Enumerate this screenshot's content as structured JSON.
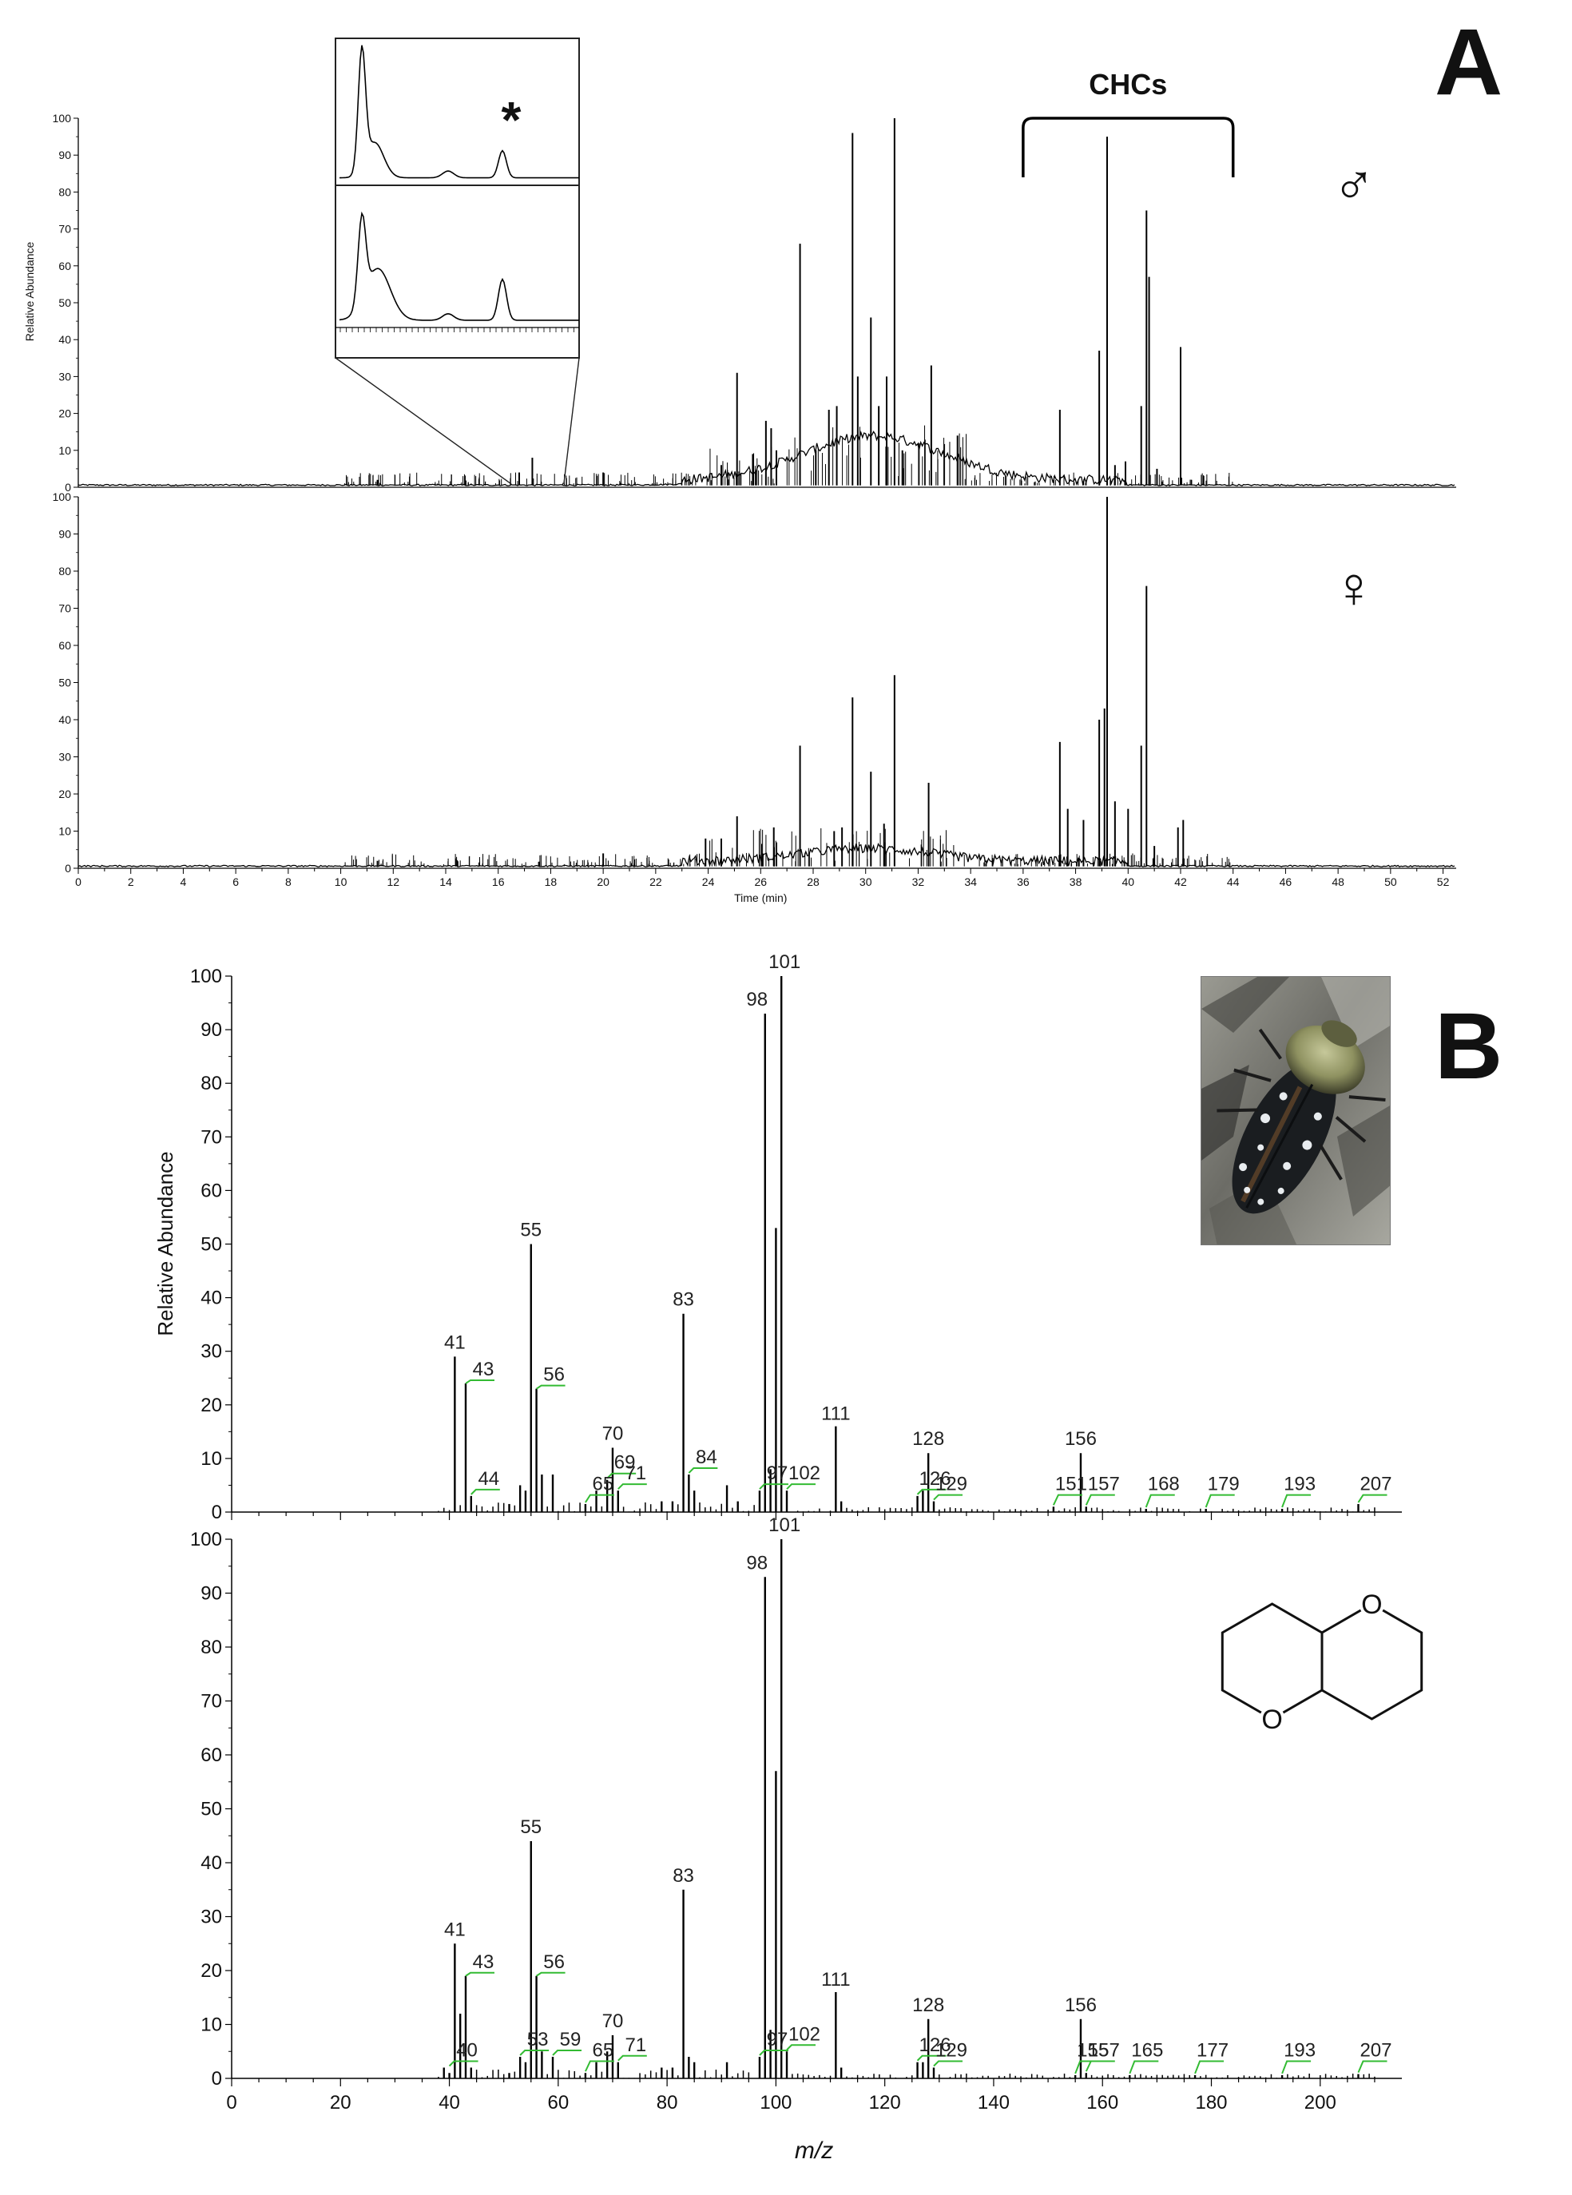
{
  "panels": {
    "a": {
      "letter": "A"
    },
    "b": {
      "letter": "B"
    }
  },
  "chart_data": [
    {
      "type": "line",
      "id": "chromatogram-male",
      "symbol": "♂",
      "ylabel": "Relative Abundance",
      "yticks": [
        0,
        10,
        20,
        30,
        40,
        50,
        60,
        70,
        80,
        90,
        100
      ],
      "ylim": [
        0,
        100
      ],
      "xlim": [
        0,
        52.5
      ],
      "bracket": {
        "label": "CHCs",
        "x_range": [
          36,
          44
        ]
      },
      "inset": {
        "marker": "*",
        "x_range": [
          16.5,
          18.5
        ]
      },
      "peaks": [
        [
          11.4,
          2
        ],
        [
          16.8,
          4
        ],
        [
          17.3,
          8
        ],
        [
          20,
          4
        ],
        [
          24.5,
          6
        ],
        [
          25.1,
          31
        ],
        [
          25.7,
          9
        ],
        [
          26.2,
          18
        ],
        [
          26.4,
          16
        ],
        [
          26.6,
          10
        ],
        [
          27.5,
          66
        ],
        [
          28.1,
          10
        ],
        [
          28.6,
          21
        ],
        [
          28.9,
          22
        ],
        [
          29.5,
          96
        ],
        [
          29.7,
          30
        ],
        [
          30.2,
          46
        ],
        [
          30.5,
          22
        ],
        [
          30.8,
          30
        ],
        [
          31.1,
          100
        ],
        [
          31.4,
          10
        ],
        [
          32.5,
          33
        ],
        [
          33.5,
          14
        ],
        [
          37.4,
          21
        ],
        [
          38.9,
          37
        ],
        [
          39.2,
          95
        ],
        [
          39.5,
          6
        ],
        [
          39.9,
          7
        ],
        [
          40.5,
          22
        ],
        [
          40.7,
          75
        ],
        [
          40.8,
          57
        ],
        [
          41.1,
          5
        ],
        [
          42.0,
          38
        ]
      ]
    },
    {
      "type": "line",
      "id": "chromatogram-female",
      "symbol": "♀",
      "xlabel": "Time (min)",
      "xticks": [
        0,
        2,
        4,
        6,
        8,
        10,
        12,
        14,
        16,
        18,
        20,
        22,
        24,
        26,
        28,
        30,
        32,
        34,
        36,
        38,
        40,
        42,
        44,
        46,
        48,
        50,
        52
      ],
      "yticks": [
        0,
        10,
        20,
        30,
        40,
        50,
        60,
        70,
        80,
        90,
        100
      ],
      "ylim": [
        0,
        100
      ],
      "xlim": [
        0,
        52.5
      ],
      "peaks": [
        [
          11.4,
          2
        ],
        [
          20,
          4
        ],
        [
          23.9,
          8
        ],
        [
          24.5,
          8
        ],
        [
          25.1,
          14
        ],
        [
          26.5,
          11
        ],
        [
          27.5,
          33
        ],
        [
          28.8,
          10
        ],
        [
          29.1,
          11
        ],
        [
          29.5,
          46
        ],
        [
          30.2,
          26
        ],
        [
          30.7,
          12
        ],
        [
          31.1,
          52
        ],
        [
          32.4,
          23
        ],
        [
          37.4,
          34
        ],
        [
          37.7,
          16
        ],
        [
          38.3,
          13
        ],
        [
          38.9,
          40
        ],
        [
          39.1,
          43
        ],
        [
          39.2,
          100
        ],
        [
          39.5,
          18
        ],
        [
          40.0,
          16
        ],
        [
          40.5,
          33
        ],
        [
          40.7,
          76
        ],
        [
          41.0,
          6
        ],
        [
          41.9,
          11
        ],
        [
          42.1,
          13
        ]
      ]
    },
    {
      "type": "bar",
      "id": "mass-spectrum-sample",
      "ylabel": "Relative Abundance",
      "yticks": [
        0,
        10,
        20,
        30,
        40,
        50,
        60,
        70,
        80,
        90,
        100
      ],
      "ylim": [
        0,
        100
      ],
      "xlim": [
        0,
        215
      ],
      "peaks": [
        [
          41,
          29
        ],
        [
          43,
          24
        ],
        [
          44,
          3
        ],
        [
          51,
          1.5
        ],
        [
          53,
          5
        ],
        [
          54,
          4
        ],
        [
          55,
          50
        ],
        [
          56,
          23
        ],
        [
          57,
          7
        ],
        [
          59,
          7
        ],
        [
          65,
          1.5
        ],
        [
          67,
          4
        ],
        [
          69,
          6
        ],
        [
          70,
          12
        ],
        [
          71,
          4
        ],
        [
          79,
          2
        ],
        [
          81,
          2
        ],
        [
          83,
          37
        ],
        [
          84,
          7
        ],
        [
          85,
          4
        ],
        [
          91,
          5
        ],
        [
          93,
          2
        ],
        [
          97,
          4
        ],
        [
          98,
          93
        ],
        [
          99,
          8
        ],
        [
          100,
          53
        ],
        [
          101,
          100
        ],
        [
          102,
          4
        ],
        [
          111,
          16
        ],
        [
          112,
          2
        ],
        [
          126,
          3
        ],
        [
          127,
          4
        ],
        [
          128,
          11
        ],
        [
          129,
          2
        ],
        [
          151,
          1
        ],
        [
          156,
          11
        ],
        [
          157,
          1
        ],
        [
          168,
          0.6
        ],
        [
          179,
          0.6
        ],
        [
          193,
          0.6
        ],
        [
          207,
          1.5
        ]
      ],
      "labels": [
        {
          "text": "41",
          "x": 41,
          "y": 29
        },
        {
          "text": "43",
          "x": 43,
          "y": 24
        },
        {
          "text": "44",
          "x": 44,
          "y": 3
        },
        {
          "text": "55",
          "x": 55,
          "y": 50
        },
        {
          "text": "56",
          "x": 56,
          "y": 23
        },
        {
          "text": "69",
          "x": 69,
          "y": 6
        },
        {
          "text": "65",
          "x": 65,
          "y": 1.5
        },
        {
          "text": "70",
          "x": 70,
          "y": 12
        },
        {
          "text": "71",
          "x": 71,
          "y": 4
        },
        {
          "text": "83",
          "x": 83,
          "y": 37
        },
        {
          "text": "84",
          "x": 84,
          "y": 7
        },
        {
          "text": "97",
          "x": 97,
          "y": 4
        },
        {
          "text": "98",
          "x": 98,
          "y": 93
        },
        {
          "text": "101",
          "x": 101,
          "y": 100
        },
        {
          "text": "102",
          "x": 102,
          "y": 4
        },
        {
          "text": "111",
          "x": 111,
          "y": 16
        },
        {
          "text": "126",
          "x": 126,
          "y": 3
        },
        {
          "text": "128",
          "x": 128,
          "y": 11
        },
        {
          "text": "129",
          "x": 129,
          "y": 2
        },
        {
          "text": "151",
          "x": 151,
          "y": 1
        },
        {
          "text": "156",
          "x": 156,
          "y": 11
        },
        {
          "text": "157",
          "x": 157,
          "y": 1
        },
        {
          "text": "168",
          "x": 168,
          "y": 0.6
        },
        {
          "text": "179",
          "x": 179,
          "y": 0.6
        },
        {
          "text": "193",
          "x": 193,
          "y": 0.6
        },
        {
          "text": "207",
          "x": 207,
          "y": 1.5
        }
      ]
    },
    {
      "type": "bar",
      "id": "mass-spectrum-reference",
      "xlabel": "m/z",
      "xticks": [
        0,
        20,
        40,
        60,
        80,
        100,
        120,
        140,
        160,
        180,
        200
      ],
      "yticks": [
        0,
        10,
        20,
        30,
        40,
        50,
        60,
        70,
        80,
        90,
        100
      ],
      "ylim": [
        0,
        100
      ],
      "xlim": [
        0,
        215
      ],
      "peaks": [
        [
          39,
          2
        ],
        [
          40,
          1
        ],
        [
          41,
          25
        ],
        [
          42,
          12
        ],
        [
          43,
          19
        ],
        [
          44,
          2
        ],
        [
          51,
          1
        ],
        [
          53,
          4
        ],
        [
          54,
          3
        ],
        [
          55,
          44
        ],
        [
          56,
          19
        ],
        [
          57,
          5
        ],
        [
          59,
          4
        ],
        [
          65,
          1
        ],
        [
          67,
          3
        ],
        [
          69,
          5
        ],
        [
          70,
          8
        ],
        [
          71,
          3
        ],
        [
          79,
          2
        ],
        [
          81,
          2
        ],
        [
          83,
          35
        ],
        [
          84,
          4
        ],
        [
          85,
          3
        ],
        [
          91,
          3
        ],
        [
          97,
          4
        ],
        [
          98,
          93
        ],
        [
          99,
          9
        ],
        [
          100,
          57
        ],
        [
          101,
          100
        ],
        [
          102,
          5
        ],
        [
          111,
          16
        ],
        [
          112,
          2
        ],
        [
          126,
          3
        ],
        [
          127,
          3
        ],
        [
          128,
          11
        ],
        [
          129,
          2
        ],
        [
          155,
          0.6
        ],
        [
          156,
          11
        ],
        [
          157,
          1
        ],
        [
          165,
          0.6
        ],
        [
          177,
          0.6
        ],
        [
          193,
          0.6
        ],
        [
          207,
          0.8
        ]
      ],
      "labels": [
        {
          "text": "40",
          "x": 40,
          "y": 2
        },
        {
          "text": "41",
          "x": 41,
          "y": 25
        },
        {
          "text": "43",
          "x": 43,
          "y": 19
        },
        {
          "text": "53",
          "x": 53,
          "y": 4
        },
        {
          "text": "55",
          "x": 55,
          "y": 44
        },
        {
          "text": "56",
          "x": 56,
          "y": 19
        },
        {
          "text": "59",
          "x": 59,
          "y": 4
        },
        {
          "text": "65",
          "x": 65,
          "y": 1
        },
        {
          "text": "70",
          "x": 70,
          "y": 8
        },
        {
          "text": "71",
          "x": 71,
          "y": 3
        },
        {
          "text": "83",
          "x": 83,
          "y": 35
        },
        {
          "text": "97",
          "x": 97,
          "y": 4
        },
        {
          "text": "98",
          "x": 98,
          "y": 93
        },
        {
          "text": "101",
          "x": 101,
          "y": 100
        },
        {
          "text": "102",
          "x": 102,
          "y": 5
        },
        {
          "text": "111",
          "x": 111,
          "y": 16
        },
        {
          "text": "126",
          "x": 126,
          "y": 3
        },
        {
          "text": "128",
          "x": 128,
          "y": 11
        },
        {
          "text": "129",
          "x": 129,
          "y": 2
        },
        {
          "text": "155",
          "x": 155,
          "y": 0.6
        },
        {
          "text": "156",
          "x": 156,
          "y": 11
        },
        {
          "text": "157",
          "x": 157,
          "y": 1
        },
        {
          "text": "165",
          "x": 165,
          "y": 0.6
        },
        {
          "text": "177",
          "x": 177,
          "y": 0.6
        },
        {
          "text": "193",
          "x": 193,
          "y": 0.6
        },
        {
          "text": "207",
          "x": 207,
          "y": 0.8
        }
      ],
      "structure": {
        "atom_labels": [
          "O",
          "O"
        ]
      }
    }
  ]
}
